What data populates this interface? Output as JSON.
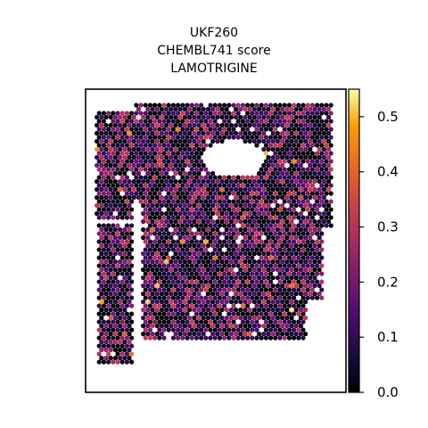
{
  "chart_data": {
    "type": "scatter",
    "title_lines": [
      "UKF260",
      "CHEMBL741 score",
      "LAMOTRIGINE"
    ],
    "xlabel": "",
    "ylabel": "",
    "colormap": "inferno",
    "colorbar": {
      "range": [
        0.0,
        0.55
      ],
      "ticks": [
        "0.0",
        "0.1",
        "0.2",
        "0.3",
        "0.4",
        "0.5"
      ],
      "tick_values": [
        0.0,
        0.1,
        0.2,
        0.3,
        0.4,
        0.5
      ]
    },
    "colors": {
      "low": "#000004",
      "mid_low": "#420a68",
      "mid": "#932667",
      "mid_high": "#dd513a",
      "high": "#fca50a",
      "max": "#fcffa4"
    },
    "spot_score_distribution": {
      "min": 0.0,
      "typical": 0.1,
      "max": 0.55
    }
  }
}
